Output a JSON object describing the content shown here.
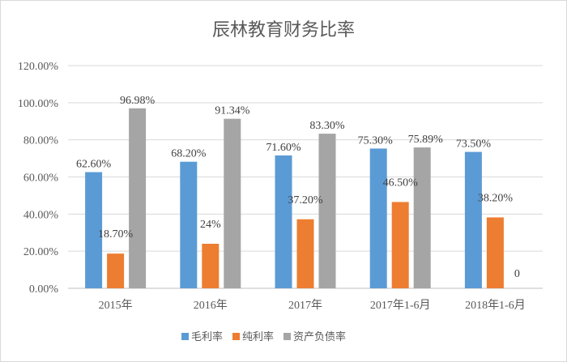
{
  "chart_data": {
    "type": "bar",
    "title": "辰林教育财务比率",
    "categories": [
      "2015年",
      "2016年",
      "2017年",
      "2017年1-6月",
      "2018年1-6月"
    ],
    "yticks": [
      "0.00%",
      "20.00%",
      "40.00%",
      "60.00%",
      "80.00%",
      "100.00%",
      "120.00%"
    ],
    "ylim": [
      0,
      120
    ],
    "grid": true,
    "legend_position": "bottom",
    "series": [
      {
        "name": "毛利率",
        "color": "#5b9bd5",
        "values": [
          62.6,
          68.2,
          71.6,
          75.3,
          73.5
        ],
        "labels": [
          "62.60%",
          "68.20%",
          "71.60%",
          "75.30%",
          "73.50%"
        ]
      },
      {
        "name": "纯利率",
        "color": "#ed7d31",
        "values": [
          18.7,
          24,
          37.2,
          46.5,
          38.2
        ],
        "labels": [
          "18.70%",
          "24%",
          "37.20%",
          "46.50%",
          "38.20%"
        ]
      },
      {
        "name": "资产负债率",
        "color": "#a5a5a5",
        "values": [
          96.98,
          91.34,
          83.3,
          75.89,
          0
        ],
        "labels": [
          "96.98%",
          "91.34%",
          "83.30%",
          "75.89%",
          "0"
        ]
      }
    ]
  }
}
